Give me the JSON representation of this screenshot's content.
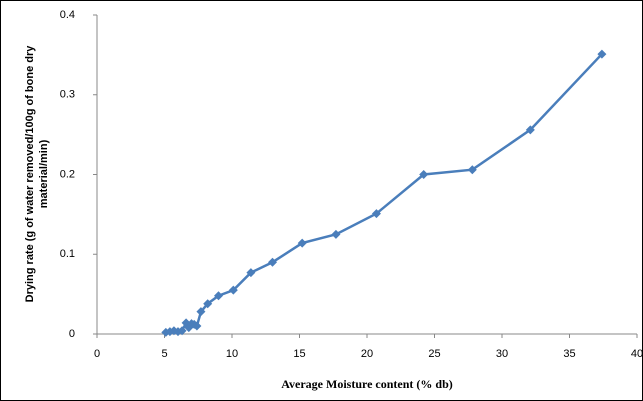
{
  "chart_data": {
    "type": "line",
    "xlabel": "Average Moisture content (% db)",
    "ylabel": [
      "Drying rate (g of water removed/100g of bone dry",
      "material/min)"
    ],
    "x": [
      5.1,
      5.4,
      5.7,
      6.0,
      6.3,
      6.6,
      6.8,
      7.0,
      7.2,
      7.4,
      7.7,
      8.2,
      9.0,
      10.1,
      11.4,
      13.0,
      15.2,
      17.7,
      20.7,
      24.2,
      27.8,
      32.1,
      37.4
    ],
    "series": [
      {
        "name": "Drying rate",
        "color": "#4a7ebb",
        "values": [
          0.002,
          0.003,
          0.004,
          0.003,
          0.004,
          0.014,
          0.008,
          0.013,
          0.012,
          0.01,
          0.028,
          0.038,
          0.048,
          0.055,
          0.077,
          0.09,
          0.114,
          0.125,
          0.151,
          0.2,
          0.206,
          0.256,
          0.351
        ]
      }
    ],
    "xlim": [
      0,
      40
    ],
    "xticks": [
      0,
      5,
      10,
      15,
      20,
      25,
      30,
      35,
      40
    ],
    "ylim": [
      0,
      0.4
    ],
    "yticks": [
      0,
      0.1,
      0.2,
      0.3,
      0.4
    ],
    "grid": false
  }
}
